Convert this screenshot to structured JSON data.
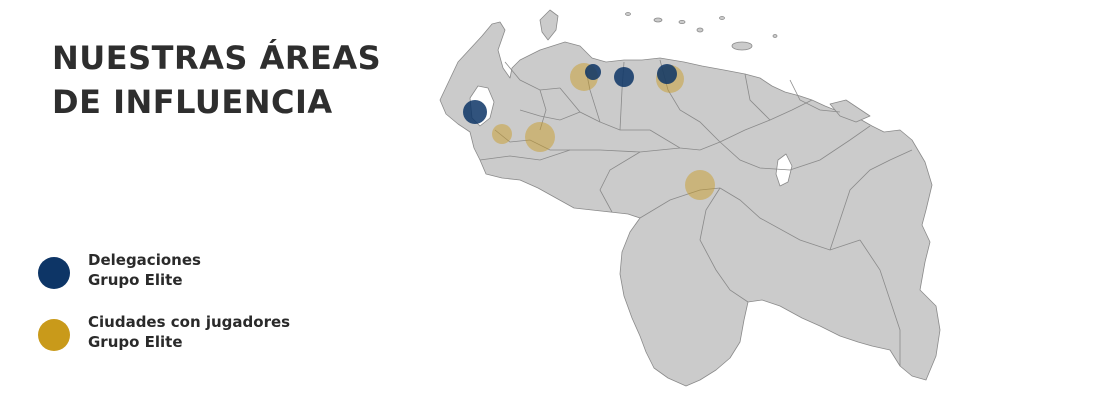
{
  "title": {
    "line1": "NUESTRAS ÁREAS",
    "line2": "DE INFLUENCIA"
  },
  "legend": [
    {
      "line1": "Delegaciones",
      "line2": "Grupo Elite",
      "color": "#0d3566",
      "category": "delegacion"
    },
    {
      "line1": "Ciudades con jugadores",
      "line2": "Grupo Elite",
      "color": "#c99a1a",
      "category": "jugadores"
    }
  ],
  "map": {
    "region": "Venezuela",
    "land_color": "#cbcbcb",
    "border_color": "#8a8a8a",
    "markers": [
      {
        "category": "jugadores",
        "place": "Valencia"
      },
      {
        "category": "jugadores",
        "place": "Barcelona"
      },
      {
        "category": "jugadores",
        "place": "San Cristóbal"
      },
      {
        "category": "jugadores",
        "place": "Barinas"
      },
      {
        "category": "jugadores",
        "place": "Ciudad Bolívar"
      },
      {
        "category": "delegacion",
        "place": "Maracaibo"
      },
      {
        "category": "delegacion",
        "place": "Valencia"
      },
      {
        "category": "delegacion",
        "place": "Caracas"
      },
      {
        "category": "delegacion",
        "place": "Barcelona"
      }
    ]
  }
}
